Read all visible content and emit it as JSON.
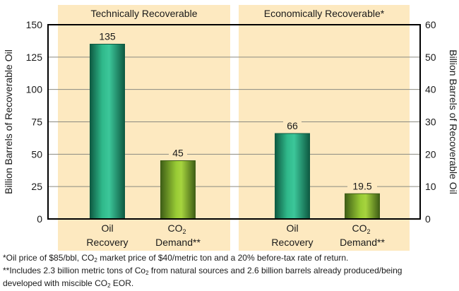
{
  "chart_data": {
    "type": "bar",
    "panels": [
      {
        "title": "Technically Recoverable",
        "categories": [
          {
            "line1": "Oil",
            "line2": "Recovery"
          },
          {
            "line1": "CO",
            "sub": "2",
            "line2": "Demand**"
          }
        ],
        "values": [
          135,
          45
        ],
        "value_labels": [
          "135",
          "45"
        ]
      },
      {
        "title": "Economically Recoverable*",
        "categories": [
          {
            "line1": "Oil",
            "line2": "Recovery"
          },
          {
            "line1": "CO",
            "sub": "2",
            "line2": "Demand**"
          }
        ],
        "values": [
          66,
          19.5
        ],
        "value_labels": [
          "66",
          "19.5"
        ]
      }
    ],
    "ylabel_left": "Billion Barrels of Recoverable Oil",
    "ylabel_right": "Billion Barrels of Recoverable Oil",
    "ylim_left": [
      0,
      150
    ],
    "yticks_left": [
      0,
      25,
      50,
      75,
      100,
      125,
      150
    ],
    "ylim_right": [
      0,
      60
    ],
    "yticks_right": [
      0,
      10,
      20,
      30,
      40,
      50,
      60
    ],
    "grid": true,
    "colors": {
      "panel_bg": "#fde9c0",
      "oil_bar": "#1f9e78",
      "oil_bar_light": "#3cc79a",
      "oil_bar_dark": "#0e5a42",
      "co2_bar": "#86bd2e",
      "co2_bar_light": "#a6d43e",
      "co2_bar_dark": "#3f5e16",
      "gridline": "#8a8a80",
      "axis": "#000000"
    }
  },
  "footnotes": {
    "note1": {
      "pre": "*Oil price of $85/bbl, CO",
      "sub": "2",
      "post": " market price of $40/metric ton and a 20% before-tax rate of return."
    },
    "note2a": {
      "pre": "**Includes 2.3 billion metric tons of Co",
      "sub": "2",
      "post": " from natural sources and 2.6 billion barrels already produced/being"
    },
    "note2b": {
      "pre": "developed with miscible CO",
      "sub": "2",
      "post": " EOR."
    }
  }
}
